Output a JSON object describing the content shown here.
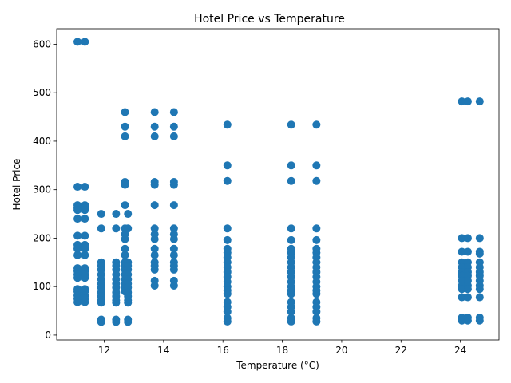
{
  "chart_data": {
    "type": "scatter",
    "title": "Hotel Price vs Temperature",
    "xlabel": "Temperature (°C)",
    "ylabel": "Hotel Price",
    "xlim": [
      10.4,
      25.3
    ],
    "ylim": [
      -10,
      632
    ],
    "xticks": [
      12,
      14,
      16,
      18,
      20,
      22,
      24
    ],
    "yticks": [
      0,
      100,
      200,
      300,
      400,
      500,
      600
    ],
    "grid": false,
    "color": "#1f77b4",
    "columns": [
      {
        "x": 11.1,
        "y": [
          605,
          306,
          268,
          262,
          258,
          240,
          205,
          186,
          178,
          165,
          138,
          132,
          125,
          118,
          95,
          90,
          82,
          75,
          68
        ]
      },
      {
        "x": 11.35,
        "y": [
          605,
          306,
          268,
          262,
          258,
          240,
          205,
          186,
          178,
          165,
          138,
          132,
          125,
          118,
          95,
          90,
          82,
          75,
          68
        ]
      },
      {
        "x": 11.9,
        "y": [
          250,
          220,
          150,
          143,
          135,
          125,
          115,
          106,
          98,
          88,
          80,
          72,
          67,
          32,
          27
        ]
      },
      {
        "x": 12.4,
        "y": [
          250,
          220,
          150,
          143,
          135,
          125,
          115,
          106,
          98,
          88,
          80,
          72,
          67,
          32,
          27
        ]
      },
      {
        "x": 12.7,
        "y": [
          460,
          430,
          410,
          316,
          310,
          268,
          220,
          208,
          198,
          178,
          165,
          150,
          143,
          135,
          125,
          115,
          106,
          98,
          90
        ]
      },
      {
        "x": 12.8,
        "y": [
          250,
          220,
          150,
          143,
          135,
          125,
          115,
          106,
          98,
          88,
          80,
          72,
          67,
          32,
          27
        ]
      },
      {
        "x": 13.7,
        "y": [
          460,
          430,
          410,
          316,
          310,
          268,
          220,
          208,
          198,
          178,
          165,
          150,
          143,
          135,
          112,
          102
        ]
      },
      {
        "x": 14.35,
        "y": [
          460,
          430,
          410,
          316,
          310,
          268,
          220,
          208,
          198,
          178,
          165,
          150,
          143,
          135,
          112,
          102
        ]
      },
      {
        "x": 16.15,
        "y": [
          434,
          350,
          318,
          220,
          196,
          178,
          170,
          160,
          150,
          140,
          130,
          120,
          110,
          100,
          92,
          85,
          68,
          58,
          48,
          35,
          28
        ]
      },
      {
        "x": 18.3,
        "y": [
          434,
          350,
          318,
          220,
          196,
          178,
          170,
          160,
          150,
          140,
          130,
          120,
          110,
          100,
          92,
          85,
          68,
          58,
          48,
          35,
          28
        ]
      },
      {
        "x": 19.15,
        "y": [
          434,
          350,
          318,
          220,
          196,
          178,
          170,
          160,
          150,
          140,
          130,
          120,
          110,
          100,
          92,
          85,
          68,
          58,
          48,
          35,
          28
        ]
      },
      {
        "x": 24.05,
        "y": [
          482,
          200,
          172,
          150,
          140,
          130,
          122,
          112,
          102,
          95,
          78,
          36,
          30
        ]
      },
      {
        "x": 24.25,
        "y": [
          482,
          200,
          172,
          150,
          140,
          130,
          122,
          112,
          102,
          95,
          78,
          36,
          30
        ]
      },
      {
        "x": 24.65,
        "y": [
          482,
          200,
          172,
          168,
          150,
          140,
          130,
          122,
          112,
          102,
          95,
          78,
          36,
          30
        ]
      }
    ]
  }
}
